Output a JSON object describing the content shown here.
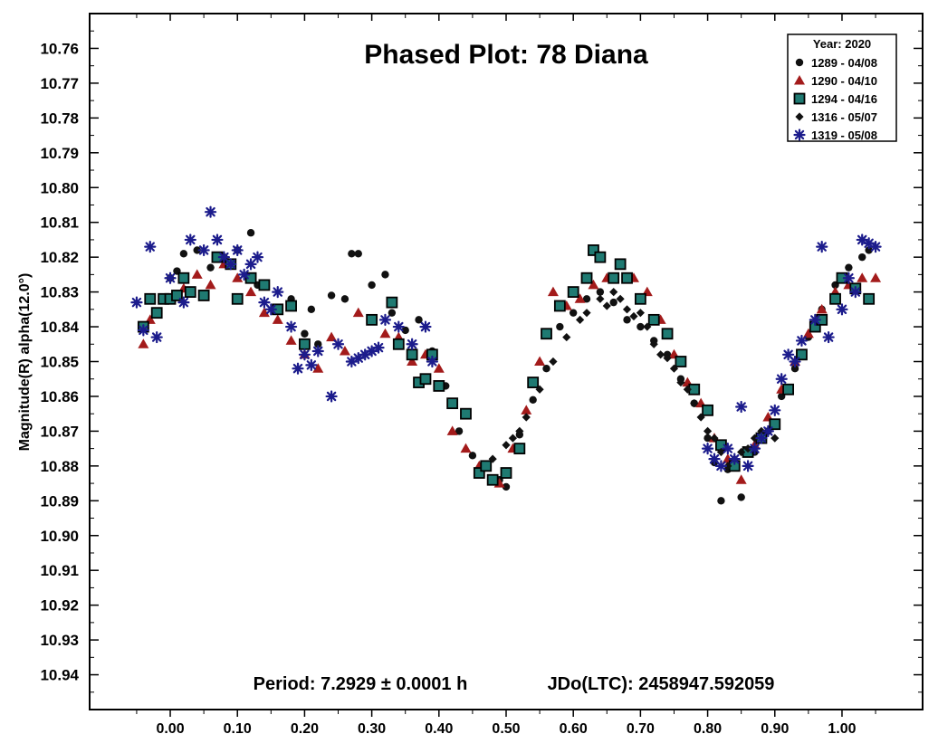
{
  "chart_data": {
    "type": "scatter",
    "title": "Phased Plot: 78 Diana",
    "ylabel": "Magnitude(R) alpha(12.0°)",
    "xlabel": "",
    "xlim": [
      -0.12,
      1.12
    ],
    "ylim": [
      10.95,
      10.75
    ],
    "y_inverted": true,
    "x_ticks": [
      "0.00",
      "0.10",
      "0.20",
      "0.30",
      "0.40",
      "0.50",
      "0.60",
      "0.70",
      "0.80",
      "0.90",
      "1.00"
    ],
    "y_ticks": [
      "10.76",
      "10.77",
      "10.78",
      "10.79",
      "10.80",
      "10.81",
      "10.82",
      "10.83",
      "10.84",
      "10.85",
      "10.86",
      "10.87",
      "10.88",
      "10.89",
      "10.90",
      "10.91",
      "10.92",
      "10.93",
      "10.94"
    ],
    "period_text": "Period: 7.2929 ± 0.0001 h",
    "epoch_text": "JDo(LTC): 2458947.592059",
    "legend": {
      "title": "Year: 2020",
      "placement": "top-right"
    },
    "series": [
      {
        "name": "1289 - 04/08",
        "marker": "circle",
        "color": "#111111",
        "x": [
          0.0,
          0.01,
          0.02,
          0.04,
          0.06,
          0.08,
          0.1,
          0.12,
          0.13,
          0.16,
          0.18,
          0.2,
          0.21,
          0.22,
          0.24,
          0.26,
          0.27,
          0.28,
          0.3,
          0.32,
          0.33,
          0.35,
          0.37,
          0.39,
          0.41,
          0.43,
          0.45,
          0.47,
          0.49,
          0.5,
          0.52,
          0.54,
          0.56,
          0.58,
          0.6,
          0.62,
          0.64,
          0.66,
          0.68,
          0.7,
          0.72,
          0.74,
          0.76,
          0.78,
          0.8,
          0.81,
          0.82,
          0.83,
          0.85,
          0.87,
          0.89,
          0.91,
          0.93,
          0.95,
          0.97,
          0.99,
          1.01,
          1.03,
          1.04
        ],
        "y": [
          10.826,
          10.824,
          10.819,
          10.818,
          10.823,
          10.82,
          10.818,
          10.813,
          10.828,
          10.835,
          10.832,
          10.842,
          10.835,
          10.845,
          10.831,
          10.832,
          10.819,
          10.819,
          10.828,
          10.825,
          10.836,
          10.841,
          10.838,
          10.847,
          10.857,
          10.87,
          10.877,
          10.88,
          10.884,
          10.886,
          10.871,
          10.861,
          10.852,
          10.84,
          10.836,
          10.832,
          10.83,
          10.833,
          10.838,
          10.84,
          10.844,
          10.848,
          10.855,
          10.862,
          10.872,
          10.879,
          10.89,
          10.881,
          10.889,
          10.876,
          10.87,
          10.86,
          10.852,
          10.843,
          10.835,
          10.828,
          10.823,
          10.82,
          10.818
        ]
      },
      {
        "name": "1290 - 04/10",
        "marker": "triangle",
        "color": "#a31b1b",
        "x": [
          -0.04,
          -0.03,
          -0.02,
          0.0,
          0.02,
          0.04,
          0.06,
          0.07,
          0.08,
          0.1,
          0.12,
          0.14,
          0.16,
          0.18,
          0.2,
          0.22,
          0.24,
          0.26,
          0.28,
          0.3,
          0.32,
          0.34,
          0.36,
          0.38,
          0.4,
          0.42,
          0.44,
          0.46,
          0.48,
          0.49,
          0.51,
          0.53,
          0.55,
          0.57,
          0.59,
          0.61,
          0.63,
          0.65,
          0.67,
          0.69,
          0.71,
          0.73,
          0.75,
          0.77,
          0.79,
          0.81,
          0.83,
          0.85,
          0.87,
          0.89,
          0.91,
          0.93,
          0.95,
          0.97,
          0.99,
          1.01,
          1.03,
          1.05
        ],
        "y": [
          10.845,
          10.838,
          10.836,
          10.832,
          10.829,
          10.825,
          10.828,
          10.82,
          10.822,
          10.826,
          10.83,
          10.836,
          10.838,
          10.844,
          10.848,
          10.852,
          10.843,
          10.847,
          10.836,
          10.838,
          10.842,
          10.843,
          10.85,
          10.848,
          10.852,
          10.87,
          10.875,
          10.88,
          10.884,
          10.885,
          10.875,
          10.864,
          10.85,
          10.83,
          10.834,
          10.832,
          10.828,
          10.826,
          10.822,
          10.826,
          10.83,
          10.838,
          10.848,
          10.856,
          10.862,
          10.872,
          10.878,
          10.884,
          10.874,
          10.866,
          10.858,
          10.85,
          10.842,
          10.835,
          10.83,
          10.828,
          10.826,
          10.826
        ]
      },
      {
        "name": "1294 - 04/16",
        "marker": "square",
        "color": "#1f7a72",
        "x": [
          -0.04,
          -0.03,
          -0.02,
          -0.01,
          0.0,
          0.01,
          0.02,
          0.03,
          0.05,
          0.07,
          0.09,
          0.1,
          0.12,
          0.14,
          0.16,
          0.18,
          0.2,
          0.3,
          0.33,
          0.34,
          0.36,
          0.37,
          0.38,
          0.39,
          0.4,
          0.42,
          0.44,
          0.46,
          0.47,
          0.48,
          0.5,
          0.52,
          0.54,
          0.56,
          0.58,
          0.6,
          0.62,
          0.63,
          0.64,
          0.66,
          0.67,
          0.68,
          0.7,
          0.72,
          0.74,
          0.76,
          0.78,
          0.8,
          0.82,
          0.84,
          0.86,
          0.88,
          0.9,
          0.92,
          0.94,
          0.96,
          0.97,
          0.99,
          1.0,
          1.02,
          1.04
        ],
        "y": [
          10.84,
          10.832,
          10.836,
          10.832,
          10.832,
          10.831,
          10.826,
          10.83,
          10.831,
          10.82,
          10.822,
          10.832,
          10.826,
          10.828,
          10.835,
          10.834,
          10.845,
          10.838,
          10.833,
          10.845,
          10.848,
          10.856,
          10.855,
          10.848,
          10.857,
          10.862,
          10.865,
          10.882,
          10.88,
          10.884,
          10.882,
          10.875,
          10.856,
          10.842,
          10.834,
          10.83,
          10.826,
          10.818,
          10.82,
          10.826,
          10.822,
          10.826,
          10.832,
          10.838,
          10.842,
          10.85,
          10.858,
          10.864,
          10.874,
          10.88,
          10.876,
          10.872,
          10.868,
          10.858,
          10.848,
          10.84,
          10.838,
          10.832,
          10.826,
          10.829,
          10.832
        ]
      },
      {
        "name": "1316 - 05/07",
        "marker": "diamond",
        "color": "#111111",
        "x": [
          0.48,
          0.5,
          0.51,
          0.52,
          0.53,
          0.55,
          0.57,
          0.59,
          0.61,
          0.62,
          0.64,
          0.65,
          0.66,
          0.67,
          0.68,
          0.69,
          0.7,
          0.71,
          0.72,
          0.73,
          0.74,
          0.75,
          0.76,
          0.77,
          0.78,
          0.79,
          0.8,
          0.81,
          0.82,
          0.83,
          0.84,
          0.85,
          0.86,
          0.87,
          0.88,
          0.9
        ],
        "y": [
          10.878,
          10.874,
          10.872,
          10.87,
          10.866,
          10.858,
          10.85,
          10.843,
          10.838,
          10.836,
          10.832,
          10.834,
          10.83,
          10.832,
          10.835,
          10.837,
          10.836,
          10.84,
          10.845,
          10.848,
          10.849,
          10.852,
          10.856,
          10.858,
          10.862,
          10.866,
          10.87,
          10.872,
          10.876,
          10.88,
          10.878,
          10.876,
          10.875,
          10.872,
          10.87,
          10.872
        ]
      },
      {
        "name": "1319 - 05/08",
        "marker": "asterisk",
        "color": "#1c1c8c",
        "x": [
          -0.05,
          -0.04,
          -0.03,
          -0.02,
          0.0,
          0.02,
          0.03,
          0.05,
          0.06,
          0.07,
          0.08,
          0.09,
          0.1,
          0.11,
          0.12,
          0.13,
          0.14,
          0.15,
          0.16,
          0.18,
          0.19,
          0.2,
          0.21,
          0.22,
          0.24,
          0.25,
          0.27,
          0.28,
          0.29,
          0.3,
          0.31,
          0.32,
          0.34,
          0.36,
          0.38,
          0.39,
          0.8,
          0.81,
          0.82,
          0.83,
          0.84,
          0.85,
          0.86,
          0.87,
          0.88,
          0.89,
          0.9,
          0.91,
          0.92,
          0.93,
          0.94,
          0.96,
          0.97,
          0.98,
          1.0,
          1.01,
          1.02,
          1.03,
          1.04,
          1.05
        ],
        "y": [
          10.833,
          10.841,
          10.817,
          10.843,
          10.826,
          10.833,
          10.815,
          10.818,
          10.807,
          10.815,
          10.82,
          10.822,
          10.818,
          10.825,
          10.822,
          10.82,
          10.833,
          10.835,
          10.83,
          10.84,
          10.852,
          10.848,
          10.851,
          10.847,
          10.86,
          10.845,
          10.85,
          10.849,
          10.848,
          10.847,
          10.846,
          10.838,
          10.84,
          10.845,
          10.84,
          10.85,
          10.875,
          10.878,
          10.88,
          10.875,
          10.878,
          10.863,
          10.88,
          10.875,
          10.872,
          10.87,
          10.864,
          10.855,
          10.848,
          10.85,
          10.844,
          10.838,
          10.817,
          10.843,
          10.835,
          10.826,
          10.83,
          10.815,
          10.816,
          10.817
        ]
      }
    ]
  }
}
